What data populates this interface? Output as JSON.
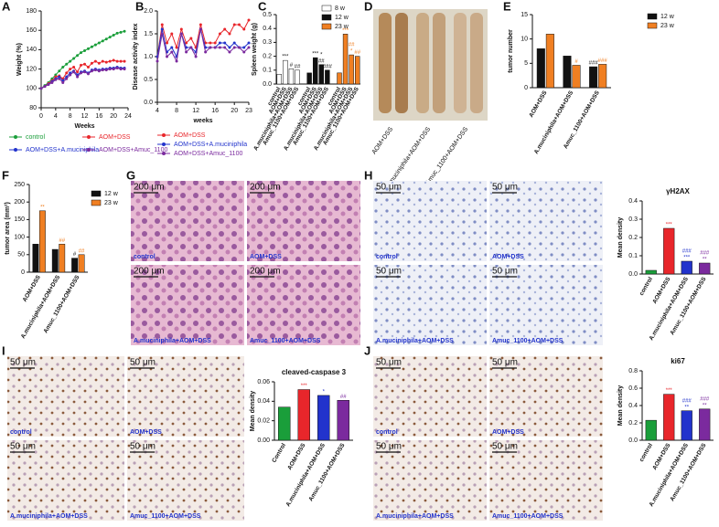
{
  "panel_labels": [
    "A",
    "B",
    "C",
    "D",
    "E",
    "F",
    "G",
    "H",
    "I",
    "J"
  ],
  "images": {
    "D": {
      "labels": [
        "AOM+DSS",
        "A.muciniphila+AOM+DSS",
        "Amuc_1100+AOM+DSS"
      ]
    },
    "G": {
      "scale": "200 μm",
      "labels": [
        "control",
        "AOM+DSS",
        "A.muciniphila+AOM+DSS",
        "Amuc_1100+AOM+DSS"
      ]
    },
    "H": {
      "scale": "50 μm",
      "labels": [
        "control",
        "AOM+DSS",
        "A.muciniphila+AOM+DSS",
        "Amuc_1100+AOM+DSS"
      ]
    },
    "I": {
      "scale": "50 μm",
      "labels": [
        "control",
        "AOM+DSS",
        "A.muciniphila+AOM+DSS",
        "Amuc_1100+AOM+DSS"
      ]
    },
    "J": {
      "scale": "50 μm",
      "labels": [
        "control",
        "AOM+DSS",
        "A.muciniphila+AOM+DSS",
        "Amuc_1100+AOM+DSS"
      ]
    }
  },
  "chart_data": [
    {
      "type": "line",
      "xlabel": "Weeks",
      "ylabel": "Weight (%)",
      "legend": "bottom-two-column",
      "x": [
        0,
        1,
        2,
        3,
        4,
        5,
        6,
        7,
        8,
        9,
        10,
        11,
        12,
        13,
        14,
        15,
        16,
        17,
        18,
        19,
        20,
        21,
        22,
        23
      ],
      "xlim": [
        0,
        24
      ],
      "xticks": [
        0,
        4,
        8,
        12,
        16,
        20,
        24
      ],
      "ylim": [
        80,
        180
      ],
      "yticks": [
        80,
        100,
        120,
        140,
        160,
        180
      ],
      "series": [
        {
          "name": "control",
          "color": "#1a9e3a",
          "values": [
            100,
            103,
            106,
            110,
            114,
            118,
            122,
            125,
            128,
            131,
            134,
            137,
            139,
            141,
            143,
            145,
            147,
            149,
            151,
            153,
            155,
            157,
            158,
            159
          ]
        },
        {
          "name": "AOM+DSS",
          "color": "#e8262b",
          "values": [
            100,
            102,
            105,
            108,
            112,
            113,
            110,
            116,
            120,
            122,
            117,
            124,
            125,
            122,
            126,
            128,
            126,
            128,
            127,
            128,
            129,
            128,
            128,
            128
          ]
        },
        {
          "name": "AOM+DSS+A.muciniphila",
          "color": "#2233cc",
          "values": [
            100,
            102,
            104,
            107,
            110,
            112,
            108,
            112,
            116,
            118,
            114,
            117,
            118,
            116,
            119,
            120,
            119,
            120,
            120,
            121,
            121,
            122,
            121,
            121
          ]
        },
        {
          "name": "AOM+DSS+Amuc_1100",
          "color": "#7b2a9e",
          "values": [
            100,
            102,
            104,
            106,
            109,
            110,
            106,
            110,
            114,
            117,
            112,
            116,
            117,
            115,
            118,
            119,
            118,
            119,
            119,
            120,
            120,
            121,
            120,
            120
          ]
        }
      ]
    },
    {
      "type": "line",
      "xlabel": "weeks",
      "ylabel": "Disease activity index",
      "legend": "bottom",
      "x": [
        4,
        5,
        6,
        7,
        8,
        9,
        10,
        11,
        12,
        13,
        14,
        15,
        16,
        17,
        18,
        19,
        20,
        21,
        22,
        23
      ],
      "xlim": [
        4,
        23
      ],
      "xticks": [
        4,
        8,
        12,
        16,
        20,
        23
      ],
      "ylim": [
        0,
        2
      ],
      "yticks": [
        {
          "value": 0,
          "label": "0.0"
        },
        0.5,
        {
          "value": 1,
          "label": "1.0"
        },
        1.5,
        {
          "value": 2,
          "label": "2.0"
        }
      ],
      "series": [
        {
          "name": "AOM+DSS",
          "color": "#e8262b",
          "values": [
            1.0,
            1.7,
            1.3,
            1.5,
            1.2,
            1.6,
            1.3,
            1.4,
            1.2,
            1.7,
            1.3,
            1.3,
            1.3,
            1.5,
            1.6,
            1.5,
            1.7,
            1.7,
            1.6,
            1.8
          ]
        },
        {
          "name": "AOM+DSS+A.muciniphila",
          "color": "#2233cc",
          "values": [
            1.0,
            1.6,
            1.1,
            1.2,
            1.0,
            1.5,
            1.2,
            1.2,
            1.1,
            1.6,
            1.2,
            1.2,
            1.2,
            1.3,
            1.3,
            1.2,
            1.3,
            1.2,
            1.2,
            1.3
          ]
        },
        {
          "name": "AOM+DSS+Amuc_1100",
          "color": "#7b2a9e",
          "values": [
            0.9,
            1.5,
            1.0,
            1.1,
            0.9,
            1.5,
            1.1,
            1.2,
            1.0,
            1.6,
            1.1,
            1.2,
            1.2,
            1.2,
            1.2,
            1.1,
            1.2,
            1.2,
            1.1,
            1.2
          ]
        }
      ]
    },
    {
      "type": "bar",
      "group_by": "series",
      "ylabel": "Spleen weight (g)",
      "legend": "upper right",
      "categories": [
        "control",
        "AOM+DSS",
        "A.muciniphila+AOM+DSS",
        "Amuc_1100+AOM+DSS"
      ],
      "ylim": [
        0,
        0.5
      ],
      "yticks": [
        {
          "value": 0,
          "label": "0.0"
        },
        0.1,
        0.2,
        0.3,
        0.4,
        0.5
      ],
      "series": [
        {
          "name": "8 w",
          "color": "#ffffff",
          "values": [
            0.07,
            0.17,
            0.11,
            0.1
          ],
          "significance": [
            null,
            [
              "***"
            ],
            [
              "#"
            ],
            [
              "##"
            ]
          ]
        },
        {
          "name": "12 w",
          "color": "#111111",
          "values": [
            0.08,
            0.19,
            0.14,
            0.1
          ],
          "significance": [
            null,
            [
              "***"
            ],
            [
              "*",
              "##"
            ],
            [
              "###"
            ]
          ]
        },
        {
          "name": "23 w",
          "color": "#f07f22",
          "values": [
            0.08,
            0.36,
            0.21,
            0.2
          ],
          "significance": [
            null,
            [
              "***"
            ],
            [
              "##",
              "*"
            ],
            [
              "##"
            ]
          ]
        }
      ]
    },
    {
      "type": "bar",
      "group_by": "category",
      "ylabel": "tumor number",
      "legend": "right",
      "categories": [
        "AOM+DSS",
        "A.muciniphila+AOM+DSS",
        "Amuc_1100+AOM+DSS"
      ],
      "ylim": [
        0,
        15
      ],
      "yticks": [
        0,
        5,
        10,
        15
      ],
      "series": [
        {
          "name": "12 w",
          "color": "#111111",
          "values": [
            8,
            6.5,
            4.3
          ],
          "significance": [
            null,
            null,
            [
              "###"
            ]
          ]
        },
        {
          "name": "23 w",
          "color": "#f07f22",
          "values": [
            11,
            4.6,
            4.8
          ],
          "significance": [
            null,
            [
              "#"
            ],
            [
              "###"
            ]
          ]
        }
      ]
    },
    {
      "type": "bar",
      "group_by": "category",
      "ylabel": "tumor area (mm²)",
      "legend": "right",
      "categories": [
        "AOM+DSS",
        "A.muciniphila+AOM+DSS",
        "Amuc_1100+AOM+DSS"
      ],
      "ylim": [
        0,
        250
      ],
      "yticks": [
        0,
        50,
        100,
        150,
        200,
        250
      ],
      "series": [
        {
          "name": "12 w",
          "color": "#111111",
          "values": [
            80,
            65,
            40
          ],
          "significance": [
            null,
            null,
            [
              "#"
            ]
          ]
        },
        {
          "name": "23 w",
          "color": "#f07f22",
          "values": [
            175,
            80,
            50
          ],
          "significance": [
            [
              "**"
            ],
            [
              "##"
            ],
            [
              "##"
            ]
          ]
        }
      ]
    },
    {
      "type": "bar",
      "title": "γH2AX",
      "ylabel": "Mean density",
      "categories": [
        "control",
        "AOM+DSS",
        "A.muciniphila+AOM+DSS",
        "Amuc_1100+AOM+DSS"
      ],
      "values": [
        0.02,
        0.25,
        0.07,
        0.06
      ],
      "colors": [
        "#1a9e3a",
        "#e8262b",
        "#2233cc",
        "#7b2a9e"
      ],
      "significance": [
        null,
        [
          "***"
        ],
        [
          "###",
          "***"
        ],
        [
          "###",
          "**"
        ]
      ],
      "ylim": [
        0,
        0.4
      ],
      "yticks": [
        {
          "value": 0,
          "label": "0.0"
        },
        0.1,
        0.2,
        0.3,
        0.4
      ]
    },
    {
      "type": "bar",
      "title": "cleaved-caspase 3",
      "ylabel": "Mean density",
      "categories": [
        "Control",
        "AOM+DSS",
        "A.muciniphila+AOM+DSS",
        "Amuc_1100+AOM+DSS"
      ],
      "values": [
        0.034,
        0.052,
        0.046,
        0.041
      ],
      "colors": [
        "#1a9e3a",
        "#e8262b",
        "#2233cc",
        "#7b2a9e"
      ],
      "significance": [
        null,
        [
          "***"
        ],
        [
          "*"
        ],
        [
          "##"
        ]
      ],
      "ylim": [
        0,
        0.06
      ],
      "yticks": [
        {
          "value": 0,
          "label": "0.00"
        },
        {
          "value": 0.02,
          "label": "0.02"
        },
        {
          "value": 0.04,
          "label": "0.04"
        },
        {
          "value": 0.06,
          "label": "0.06"
        }
      ]
    },
    {
      "type": "bar",
      "title": "ki67",
      "ylabel": "Mean density",
      "categories": [
        "control",
        "AOM+DSS",
        "A.muciniphila+AOM+DSS",
        "Amuc_1100+AOM+DSS"
      ],
      "values": [
        0.23,
        0.53,
        0.34,
        0.36
      ],
      "colors": [
        "#1a9e3a",
        "#e8262b",
        "#2233cc",
        "#7b2a9e"
      ],
      "significance": [
        null,
        [
          "***"
        ],
        [
          "###",
          "**"
        ],
        [
          "###",
          "**"
        ]
      ],
      "ylim": [
        0,
        0.8
      ],
      "yticks": [
        {
          "value": 0,
          "label": "0.0"
        },
        0.2,
        0.4,
        0.6,
        0.8
      ]
    }
  ]
}
